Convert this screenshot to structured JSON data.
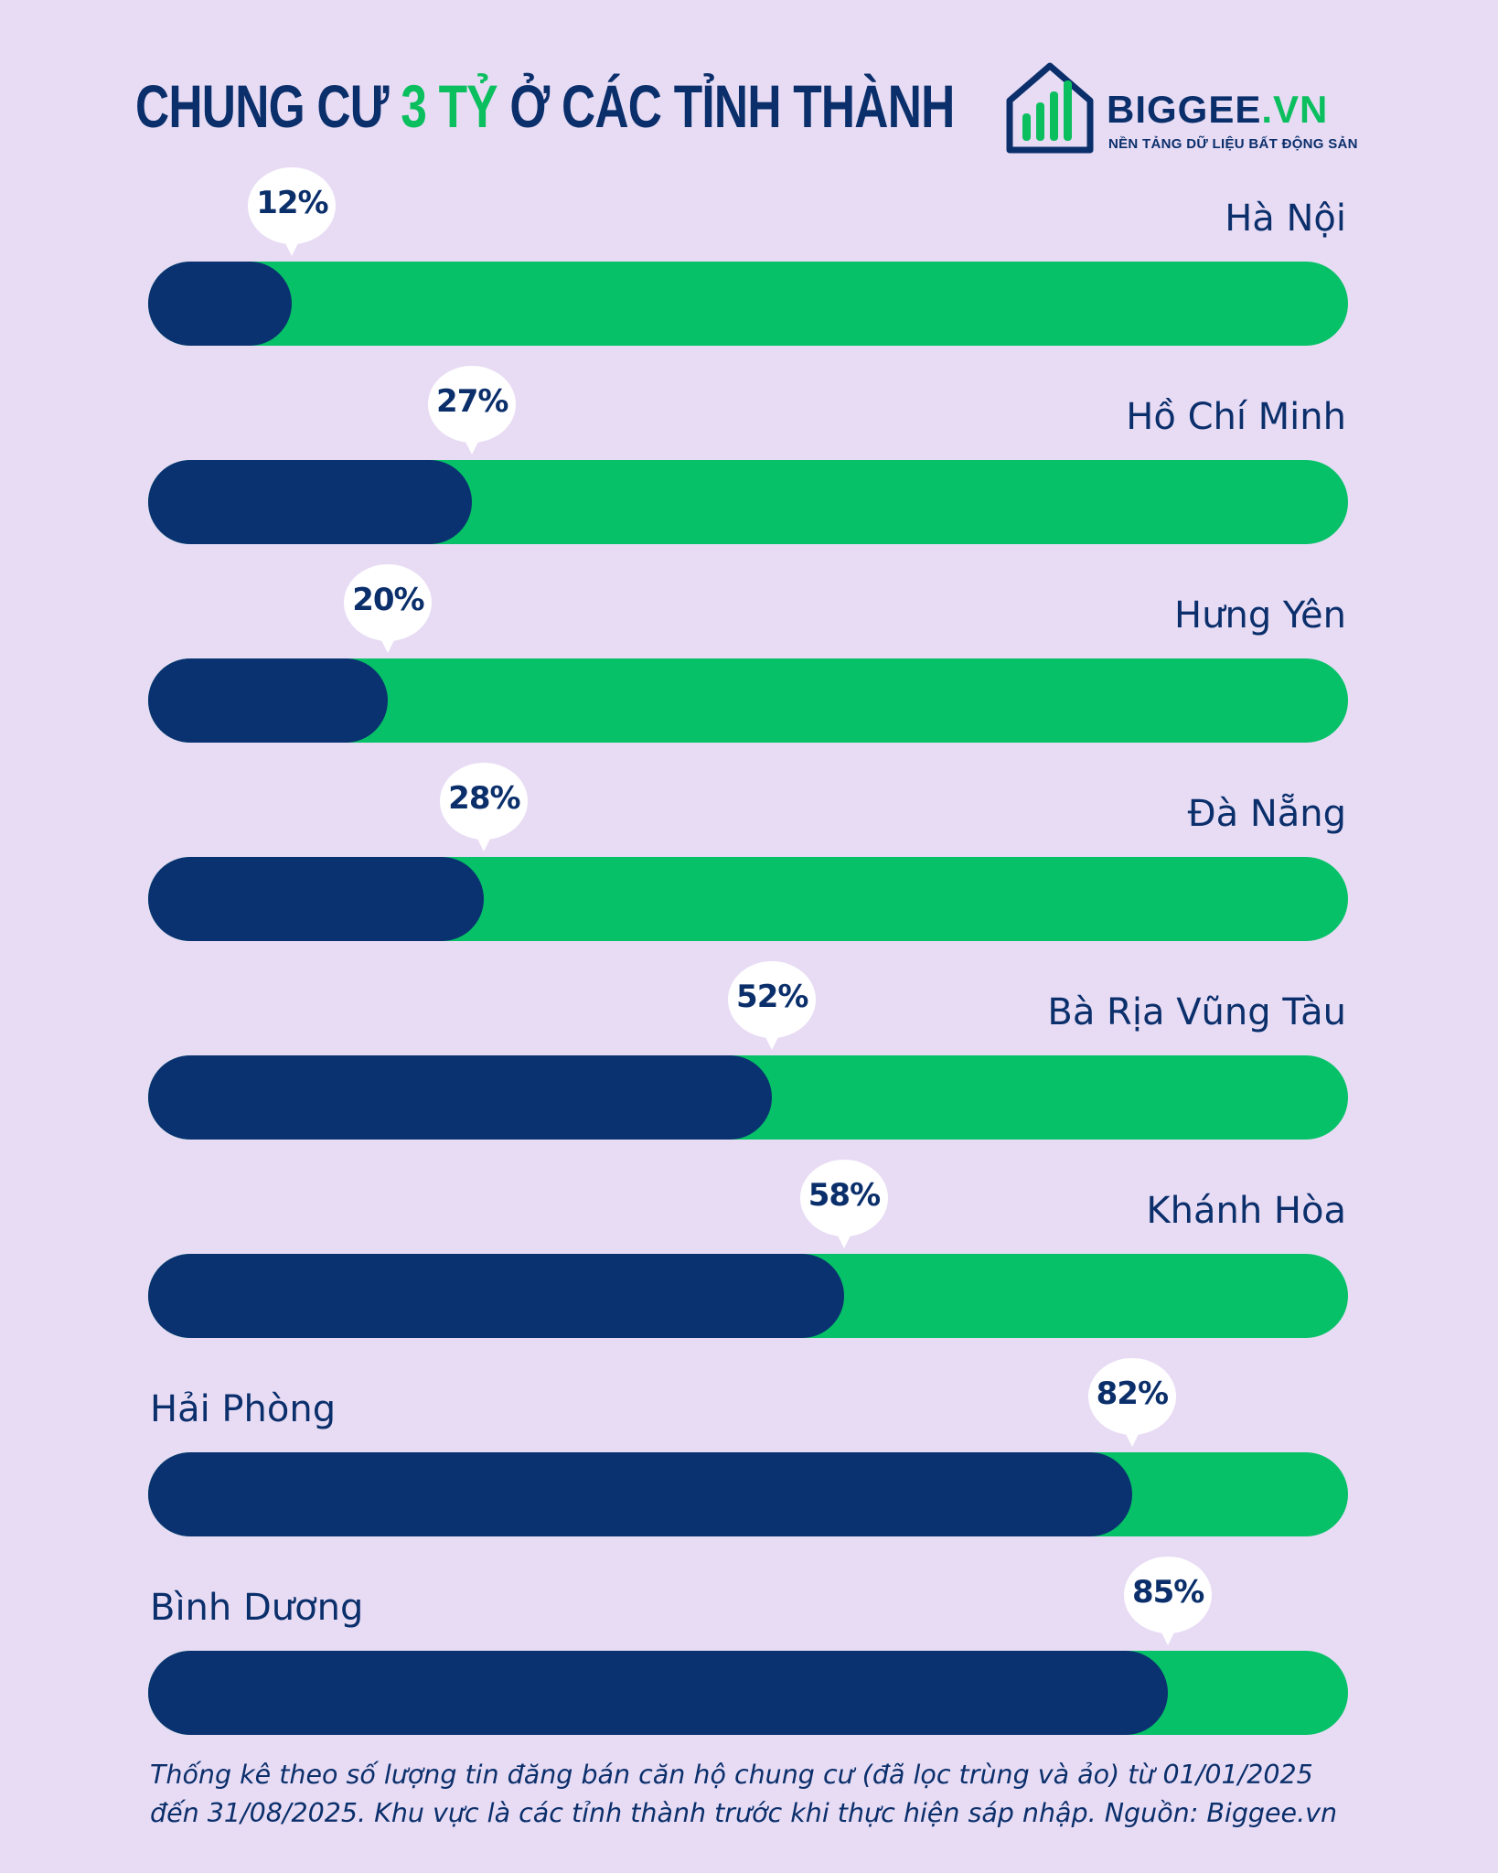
{
  "title": {
    "part1": "CHUNG CƯ ",
    "highlight": "3 TỶ",
    "part2": " Ở CÁC TỈNH THÀNH"
  },
  "logo": {
    "brand_main": "BIGGEE",
    "brand_dot": ".VN",
    "tagline": "NỀN TẢNG DỮ LIỆU BẤT ĐỘNG SẢN",
    "icon": "house-bar-chart-icon"
  },
  "colors": {
    "background": "#e8dcf5",
    "bar_track": "#06c167",
    "bar_fill": "#0a3270",
    "text": "#0b2f6b",
    "highlight": "#0bbf5f"
  },
  "chart_data": {
    "type": "bar",
    "orientation": "horizontal",
    "categories": [
      "Hà Nội",
      "Hồ Chí Minh",
      "Hưng Yên",
      "Đà Nẵng",
      "Bà Rịa Vũng Tàu",
      "Khánh Hòa",
      "Hải Phòng",
      "Bình Dương"
    ],
    "values": [
      12,
      27,
      20,
      28,
      52,
      58,
      82,
      85
    ],
    "value_labels": [
      "12%",
      "27%",
      "20%",
      "28%",
      "52%",
      "58%",
      "82%",
      "85%"
    ],
    "xlim": [
      0,
      100
    ],
    "grid": false
  },
  "footnote": "Thống kê theo số lượng tin đăng bán căn hộ chung cư (đã lọc trùng và ảo) từ 01/01/2025 đến 31/08/2025. Khu vực là các tỉnh thành trước khi thực hiện sáp nhập. Nguồn: Biggee.vn"
}
